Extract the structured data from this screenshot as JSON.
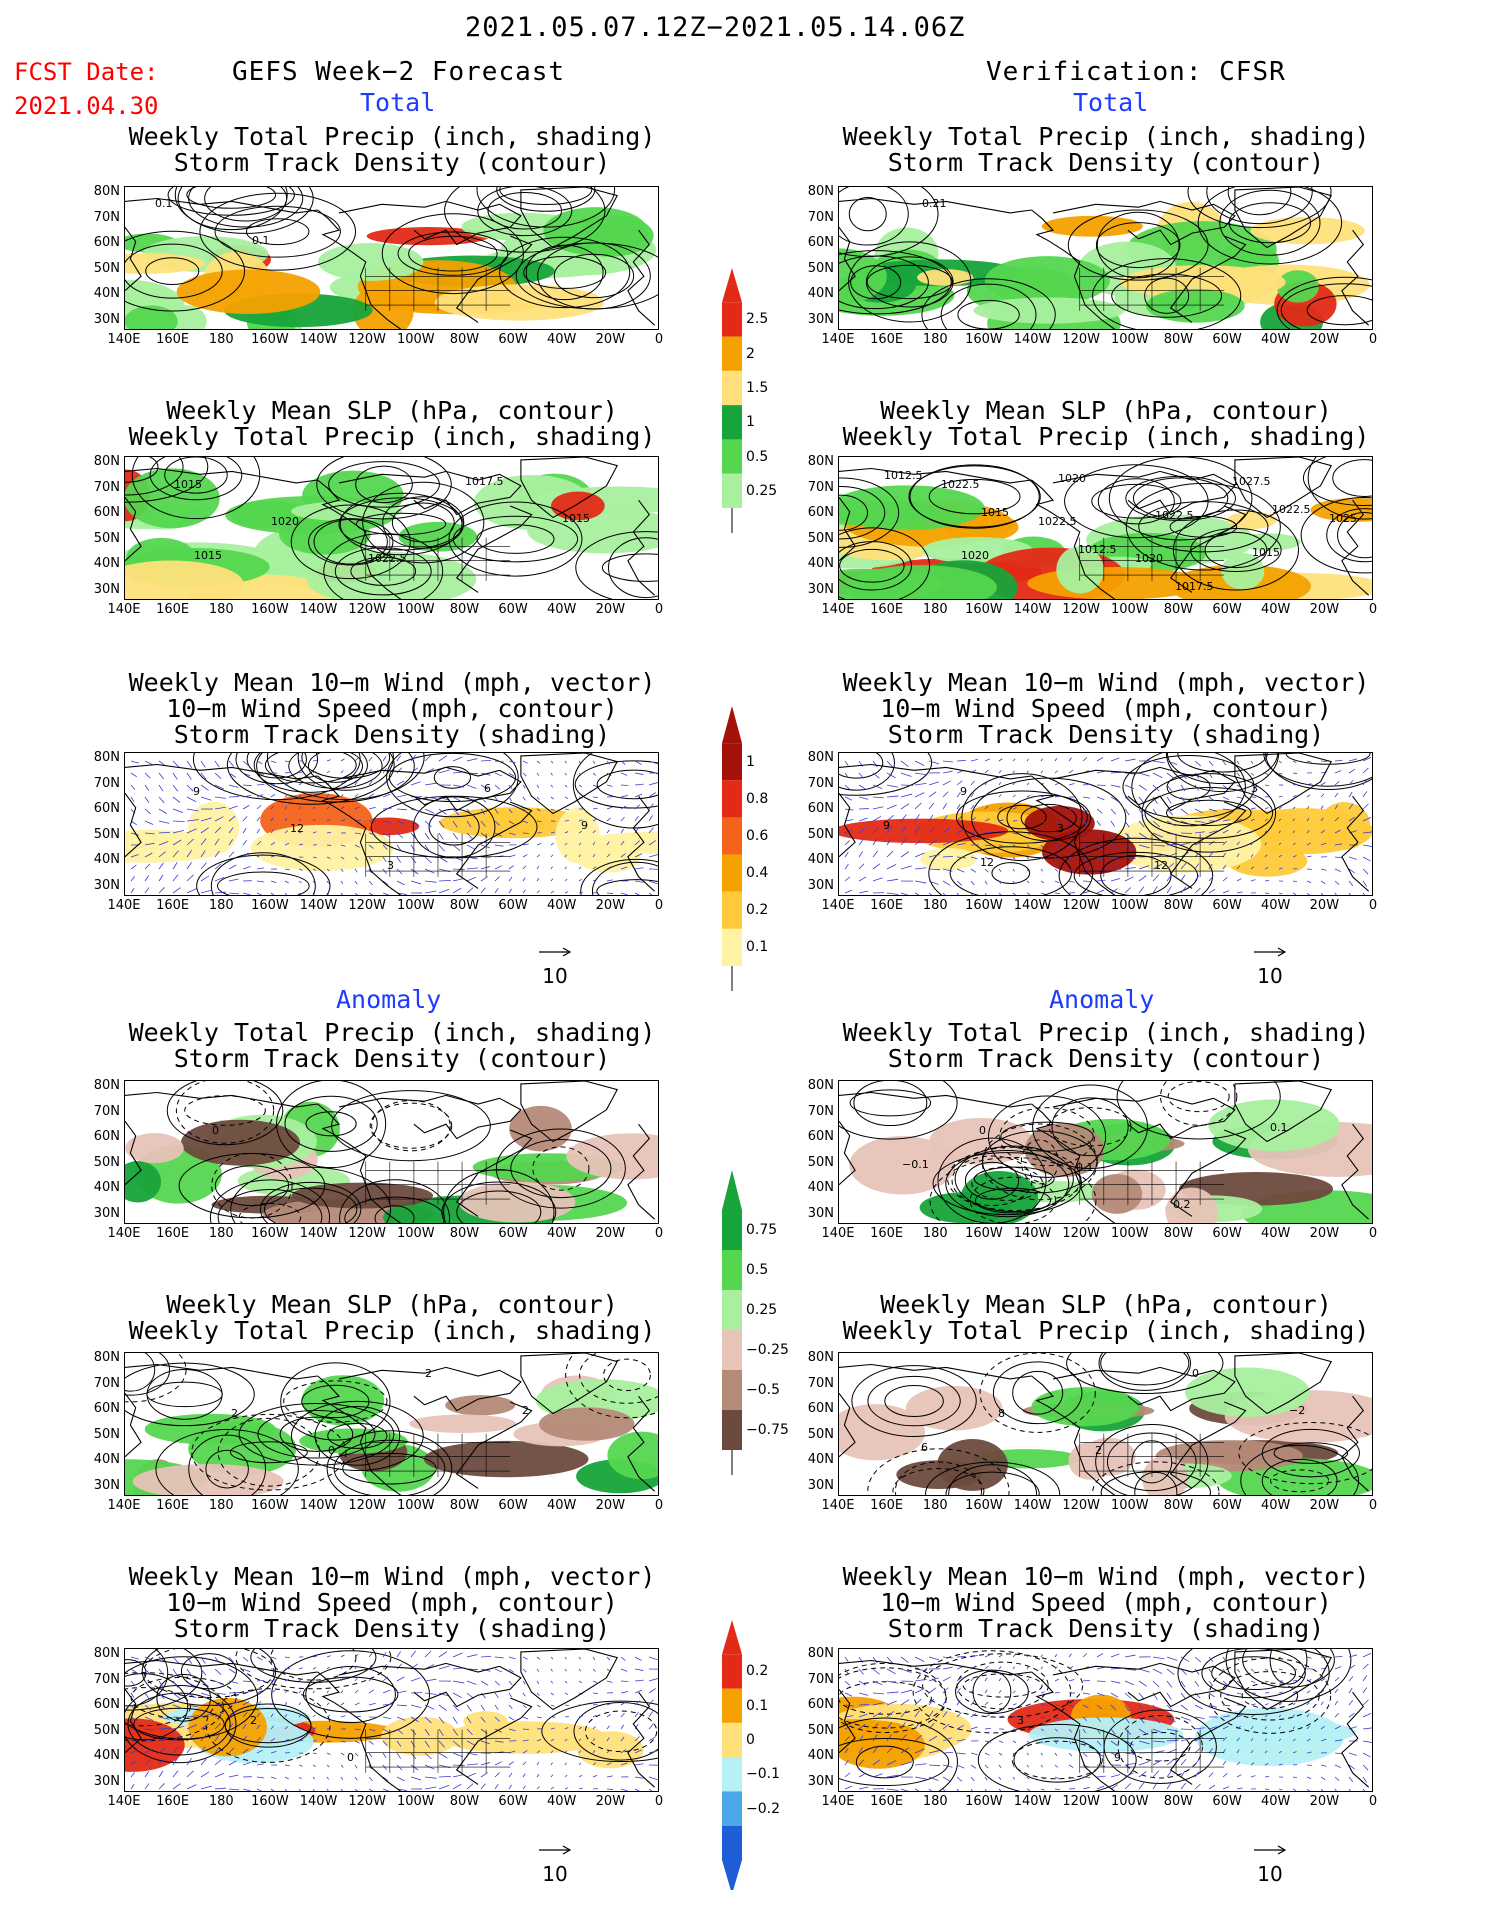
{
  "header": {
    "title": "2021.05.07.12Z−2021.05.14.06Z",
    "fcst_label": "FCST Date:",
    "fcst_date": "2021.04.30",
    "left_header": "GEFS Week−2 Forecast",
    "right_header": "Verification: CFSR",
    "total_label": "Total",
    "anomaly_label": "Anomaly"
  },
  "panel_titles": {
    "precip_storm": [
      "Weekly Total Precip (inch, shading)",
      "Storm Track Density (contour)"
    ],
    "slp_precip": [
      "Weekly Mean SLP (hPa, contour)",
      "Weekly Total Precip (inch, shading)"
    ],
    "wind_storm": [
      "Weekly Mean 10−m Wind (mph, vector)",
      "10−m Wind Speed (mph, contour)",
      "Storm Track Density (shading)"
    ]
  },
  "map_axes": {
    "lat_labels": [
      "80N",
      "70N",
      "60N",
      "50N",
      "40N",
      "30N"
    ],
    "lon_labels": [
      "140E",
      "160E",
      "180",
      "160W",
      "140W",
      "120W",
      "100W",
      "80W",
      "60W",
      "40W",
      "20W",
      "0"
    ]
  },
  "vector_reference": "10",
  "colorbars": {
    "precip_total": {
      "labels": [
        "2.5",
        "2",
        "1.5",
        "1",
        "0.5",
        "0.25"
      ],
      "colors": [
        "#e32a17",
        "#f5a100",
        "#ffe07a",
        "#17a43a",
        "#54d64f",
        "#a8f09e"
      ]
    },
    "storm_total": {
      "labels": [
        "1",
        "0.8",
        "0.6",
        "0.4",
        "0.2",
        "0.1"
      ],
      "colors": [
        "#a4110a",
        "#e32a17",
        "#f4631a",
        "#f5a100",
        "#ffca3a",
        "#fff2a3"
      ]
    },
    "precip_anom": {
      "labels": [
        "0.75",
        "0.5",
        "0.25",
        "−0.25",
        "−0.5",
        "−0.75"
      ],
      "colors": [
        "#17a43a",
        "#54d64f",
        "#a8f09e",
        "#e7c3b8",
        "#b58a78",
        "#6d4a3e"
      ]
    },
    "storm_anom": {
      "labels": [
        "0.2",
        "0.1",
        "0",
        "−0.1",
        "−0.2"
      ],
      "colors": [
        "#e32a17",
        "#f5a100",
        "#ffe07a",
        "#b5f0f5",
        "#4aa8e8",
        "#1e5fd8"
      ]
    }
  },
  "contour_labels": {
    "left_total_precip": [
      "0.1",
      "0.1"
    ],
    "right_total_precip": [
      "0.21"
    ],
    "left_total_slp": [
      "1015",
      "1020",
      "1022.5",
      "1017.5",
      "1015",
      "1015"
    ],
    "right_total_slp": [
      "1022.5",
      "1022.5",
      "1020",
      "1027.5",
      "1025",
      "1020",
      "1020",
      "1022.5",
      "1015",
      "1012.5",
      "1015",
      "1012.5",
      "1017.5",
      "1022.5"
    ],
    "left_total_wind": [
      "9",
      "12",
      "3",
      "6",
      "9"
    ],
    "right_total_wind": [
      "9",
      "3",
      "12",
      "3",
      "9",
      "12"
    ],
    "left_anom_precip": [
      "0"
    ],
    "right_anom_precip": [
      "0",
      "0.1",
      "0.2",
      "0.1",
      "−0.1"
    ],
    "left_anom_slp": [
      "2",
      "0",
      "2",
      "2"
    ],
    "right_anom_slp": [
      "8",
      "2",
      "0",
      "−2",
      "6"
    ],
    "left_anom_wind": [
      "2",
      "0"
    ],
    "right_anom_wind": [
      "3",
      "9"
    ]
  },
  "chart_data": [
    {
      "type": "heatmap",
      "title": "Weekly Total Precip (inch, shading)",
      "subtitle": "Storm Track Density (contour)",
      "side": "GEFS Week−2 Forecast",
      "group": "Total",
      "colorbar_levels": [
        0.25,
        0.5,
        1,
        1.5,
        2,
        2.5
      ]
    },
    {
      "type": "heatmap",
      "title": "Weekly Total Precip (inch, shading)",
      "subtitle": "Storm Track Density (contour)",
      "side": "Verification: CFSR",
      "group": "Total",
      "colorbar_levels": [
        0.25,
        0.5,
        1,
        1.5,
        2,
        2.5
      ]
    },
    {
      "type": "heatmap",
      "title": "Weekly Mean SLP (hPa, contour)",
      "subtitle": "Weekly Total Precip (inch, shading)",
      "side": "GEFS Week−2 Forecast",
      "group": "Total"
    },
    {
      "type": "heatmap",
      "title": "Weekly Mean SLP (hPa, contour)",
      "subtitle": "Weekly Total Precip (inch, shading)",
      "side": "Verification: CFSR",
      "group": "Total"
    },
    {
      "type": "heatmap",
      "title": "Weekly Mean 10−m Wind (mph, vector)",
      "subtitle": "Storm Track Density (shading)",
      "side": "GEFS Week−2 Forecast",
      "group": "Total",
      "colorbar_levels": [
        0.1,
        0.2,
        0.4,
        0.6,
        0.8,
        1
      ]
    },
    {
      "type": "heatmap",
      "title": "Weekly Mean 10−m Wind (mph, vector)",
      "subtitle": "Storm Track Density (shading)",
      "side": "Verification: CFSR",
      "group": "Total",
      "colorbar_levels": [
        0.1,
        0.2,
        0.4,
        0.6,
        0.8,
        1
      ]
    },
    {
      "type": "heatmap",
      "title": "Weekly Total Precip (inch, shading)",
      "subtitle": "Storm Track Density (contour)",
      "side": "GEFS Week−2 Forecast",
      "group": "Anomaly",
      "colorbar_levels": [
        -0.75,
        -0.5,
        -0.25,
        0.25,
        0.5,
        0.75
      ]
    },
    {
      "type": "heatmap",
      "title": "Weekly Total Precip (inch, shading)",
      "subtitle": "Storm Track Density (contour)",
      "side": "Verification: CFSR",
      "group": "Anomaly",
      "colorbar_levels": [
        -0.75,
        -0.5,
        -0.25,
        0.25,
        0.5,
        0.75
      ]
    },
    {
      "type": "heatmap",
      "title": "Weekly Mean SLP (hPa, contour)",
      "subtitle": "Weekly Total Precip (inch, shading)",
      "side": "GEFS Week−2 Forecast",
      "group": "Anomaly"
    },
    {
      "type": "heatmap",
      "title": "Weekly Mean SLP (hPa, contour)",
      "subtitle": "Weekly Total Precip (inch, shading)",
      "side": "Verification: CFSR",
      "group": "Anomaly"
    },
    {
      "type": "heatmap",
      "title": "Weekly Mean 10−m Wind (mph, vector)",
      "subtitle": "Storm Track Density (shading)",
      "side": "GEFS Week−2 Forecast",
      "group": "Anomaly",
      "colorbar_levels": [
        -0.2,
        -0.1,
        0,
        0.1,
        0.2
      ]
    },
    {
      "type": "heatmap",
      "title": "Weekly Mean 10−m Wind (mph, vector)",
      "subtitle": "Storm Track Density (shading)",
      "side": "Verification: CFSR",
      "group": "Anomaly",
      "colorbar_levels": [
        -0.2,
        -0.1,
        0,
        0.1,
        0.2
      ]
    }
  ]
}
